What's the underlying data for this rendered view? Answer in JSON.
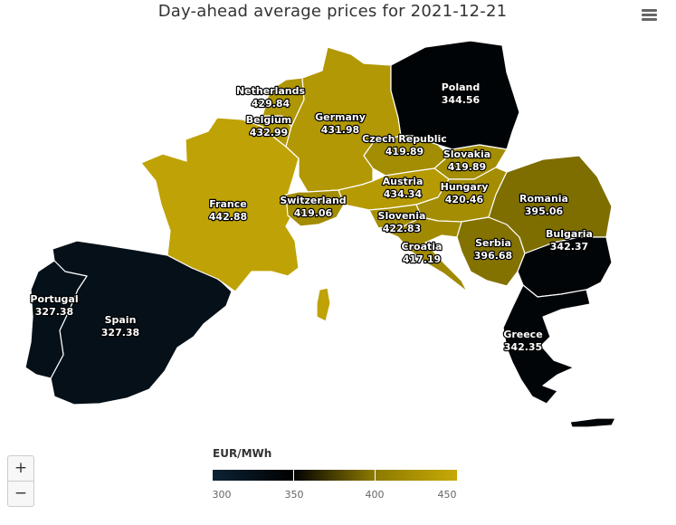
{
  "title": "Day-ahead average prices for 2021-12-21",
  "menu_icon": "hamburger-menu-icon",
  "zoom": {
    "in_label": "+",
    "out_label": "−"
  },
  "legend": {
    "title": "EUR/MWh",
    "ticks": [
      "300",
      "350",
      "400",
      "450"
    ],
    "min": 300,
    "max": 450,
    "colors": [
      "#0b2335",
      "#000000",
      "#8c7a00",
      "#c7a906"
    ]
  },
  "chart_data": {
    "type": "map",
    "unit": "EUR/MWh",
    "date": "2021-12-21",
    "countries": [
      {
        "name": "Netherlands",
        "value": 429.84
      },
      {
        "name": "Belgium",
        "value": 432.99
      },
      {
        "name": "Germany",
        "value": 431.98
      },
      {
        "name": "Poland",
        "value": 344.56
      },
      {
        "name": "France",
        "value": 442.88
      },
      {
        "name": "Czech Republic",
        "value": 419.89
      },
      {
        "name": "Slovakia",
        "value": 419.89
      },
      {
        "name": "Austria",
        "value": 434.34
      },
      {
        "name": "Hungary",
        "value": 420.46
      },
      {
        "name": "Switzerland",
        "value": 419.06
      },
      {
        "name": "Slovenia",
        "value": 422.83
      },
      {
        "name": "Croatia",
        "value": 417.19
      },
      {
        "name": "Romania",
        "value": 395.06
      },
      {
        "name": "Serbia",
        "value": 396.68
      },
      {
        "name": "Bulgaria",
        "value": 342.37
      },
      {
        "name": "Portugal",
        "value": 327.38
      },
      {
        "name": "Spain",
        "value": 327.38
      },
      {
        "name": "Greece",
        "value": 342.35
      }
    ]
  }
}
